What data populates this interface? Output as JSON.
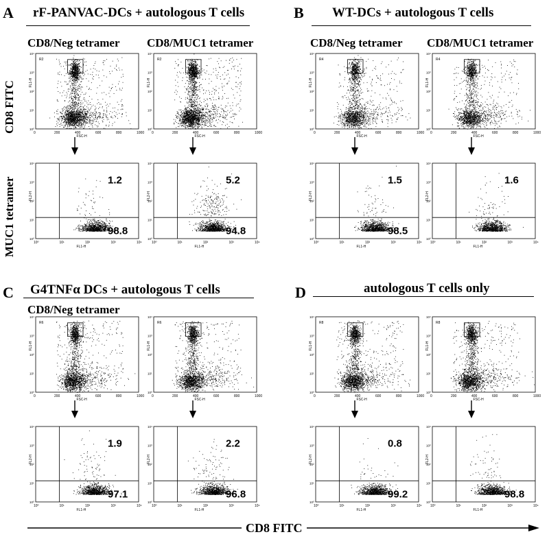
{
  "panels": [
    {
      "letter": "A",
      "title": "rF-PANVAC-DCs + autologous T cells"
    },
    {
      "letter": "B",
      "title": "WT-DCs + autologous T cells"
    },
    {
      "letter": "C",
      "title": "G4TNFα DCs + autologous T cells"
    },
    {
      "letter": "D",
      "title": "autologous T cells only"
    }
  ],
  "col_labels": {
    "neg": "CD8/Neg tetramer",
    "muc1": "CD8/MUC1 tetramer"
  },
  "row_labels": {
    "cd8": "CD8 FITC",
    "muc1": "MUC1 tetramer"
  },
  "bottom_axis_label": "CD8 FITC",
  "plot_text": {
    "fl1h": "FL1-H",
    "fl2h": "FL2-H",
    "fsch": "FSC-H",
    "fsc_ticks": [
      "0",
      "200",
      "400",
      "600",
      "800",
      "1000"
    ],
    "log_ticks": [
      "10⁰",
      "10¹",
      "10²",
      "10³",
      "10⁴"
    ]
  },
  "chart_data": [
    {
      "type": "scatter",
      "panel": "A",
      "plot": "CD8/Neg tetramer",
      "gate": "R2",
      "upper_right_pct": 1.2,
      "lower_right_pct": 98.8
    },
    {
      "type": "scatter",
      "panel": "A",
      "plot": "CD8/MUC1 tetramer",
      "gate": "R2",
      "upper_right_pct": 5.2,
      "lower_right_pct": 94.8
    },
    {
      "type": "scatter",
      "panel": "B",
      "plot": "CD8/Neg tetramer",
      "gate": "R4",
      "upper_right_pct": 1.5,
      "lower_right_pct": 98.5
    },
    {
      "type": "scatter",
      "panel": "B",
      "plot": "CD8/MUC1 tetramer",
      "gate": "R4",
      "upper_right_pct": 1.6,
      "lower_right_pct": null
    },
    {
      "type": "scatter",
      "panel": "C",
      "plot": "CD8/Neg tetramer",
      "gate": "R6",
      "upper_right_pct": 1.9,
      "lower_right_pct": 97.1
    },
    {
      "type": "scatter",
      "panel": "C",
      "plot": "right",
      "gate": "R6",
      "upper_right_pct": 2.2,
      "lower_right_pct": 96.8
    },
    {
      "type": "scatter",
      "panel": "D",
      "plot": "left",
      "gate": "R8",
      "upper_right_pct": 0.8,
      "lower_right_pct": 99.2
    },
    {
      "type": "scatter",
      "panel": "D",
      "plot": "right",
      "gate": "R8",
      "upper_right_pct": null,
      "lower_right_pct": 98.8
    }
  ]
}
